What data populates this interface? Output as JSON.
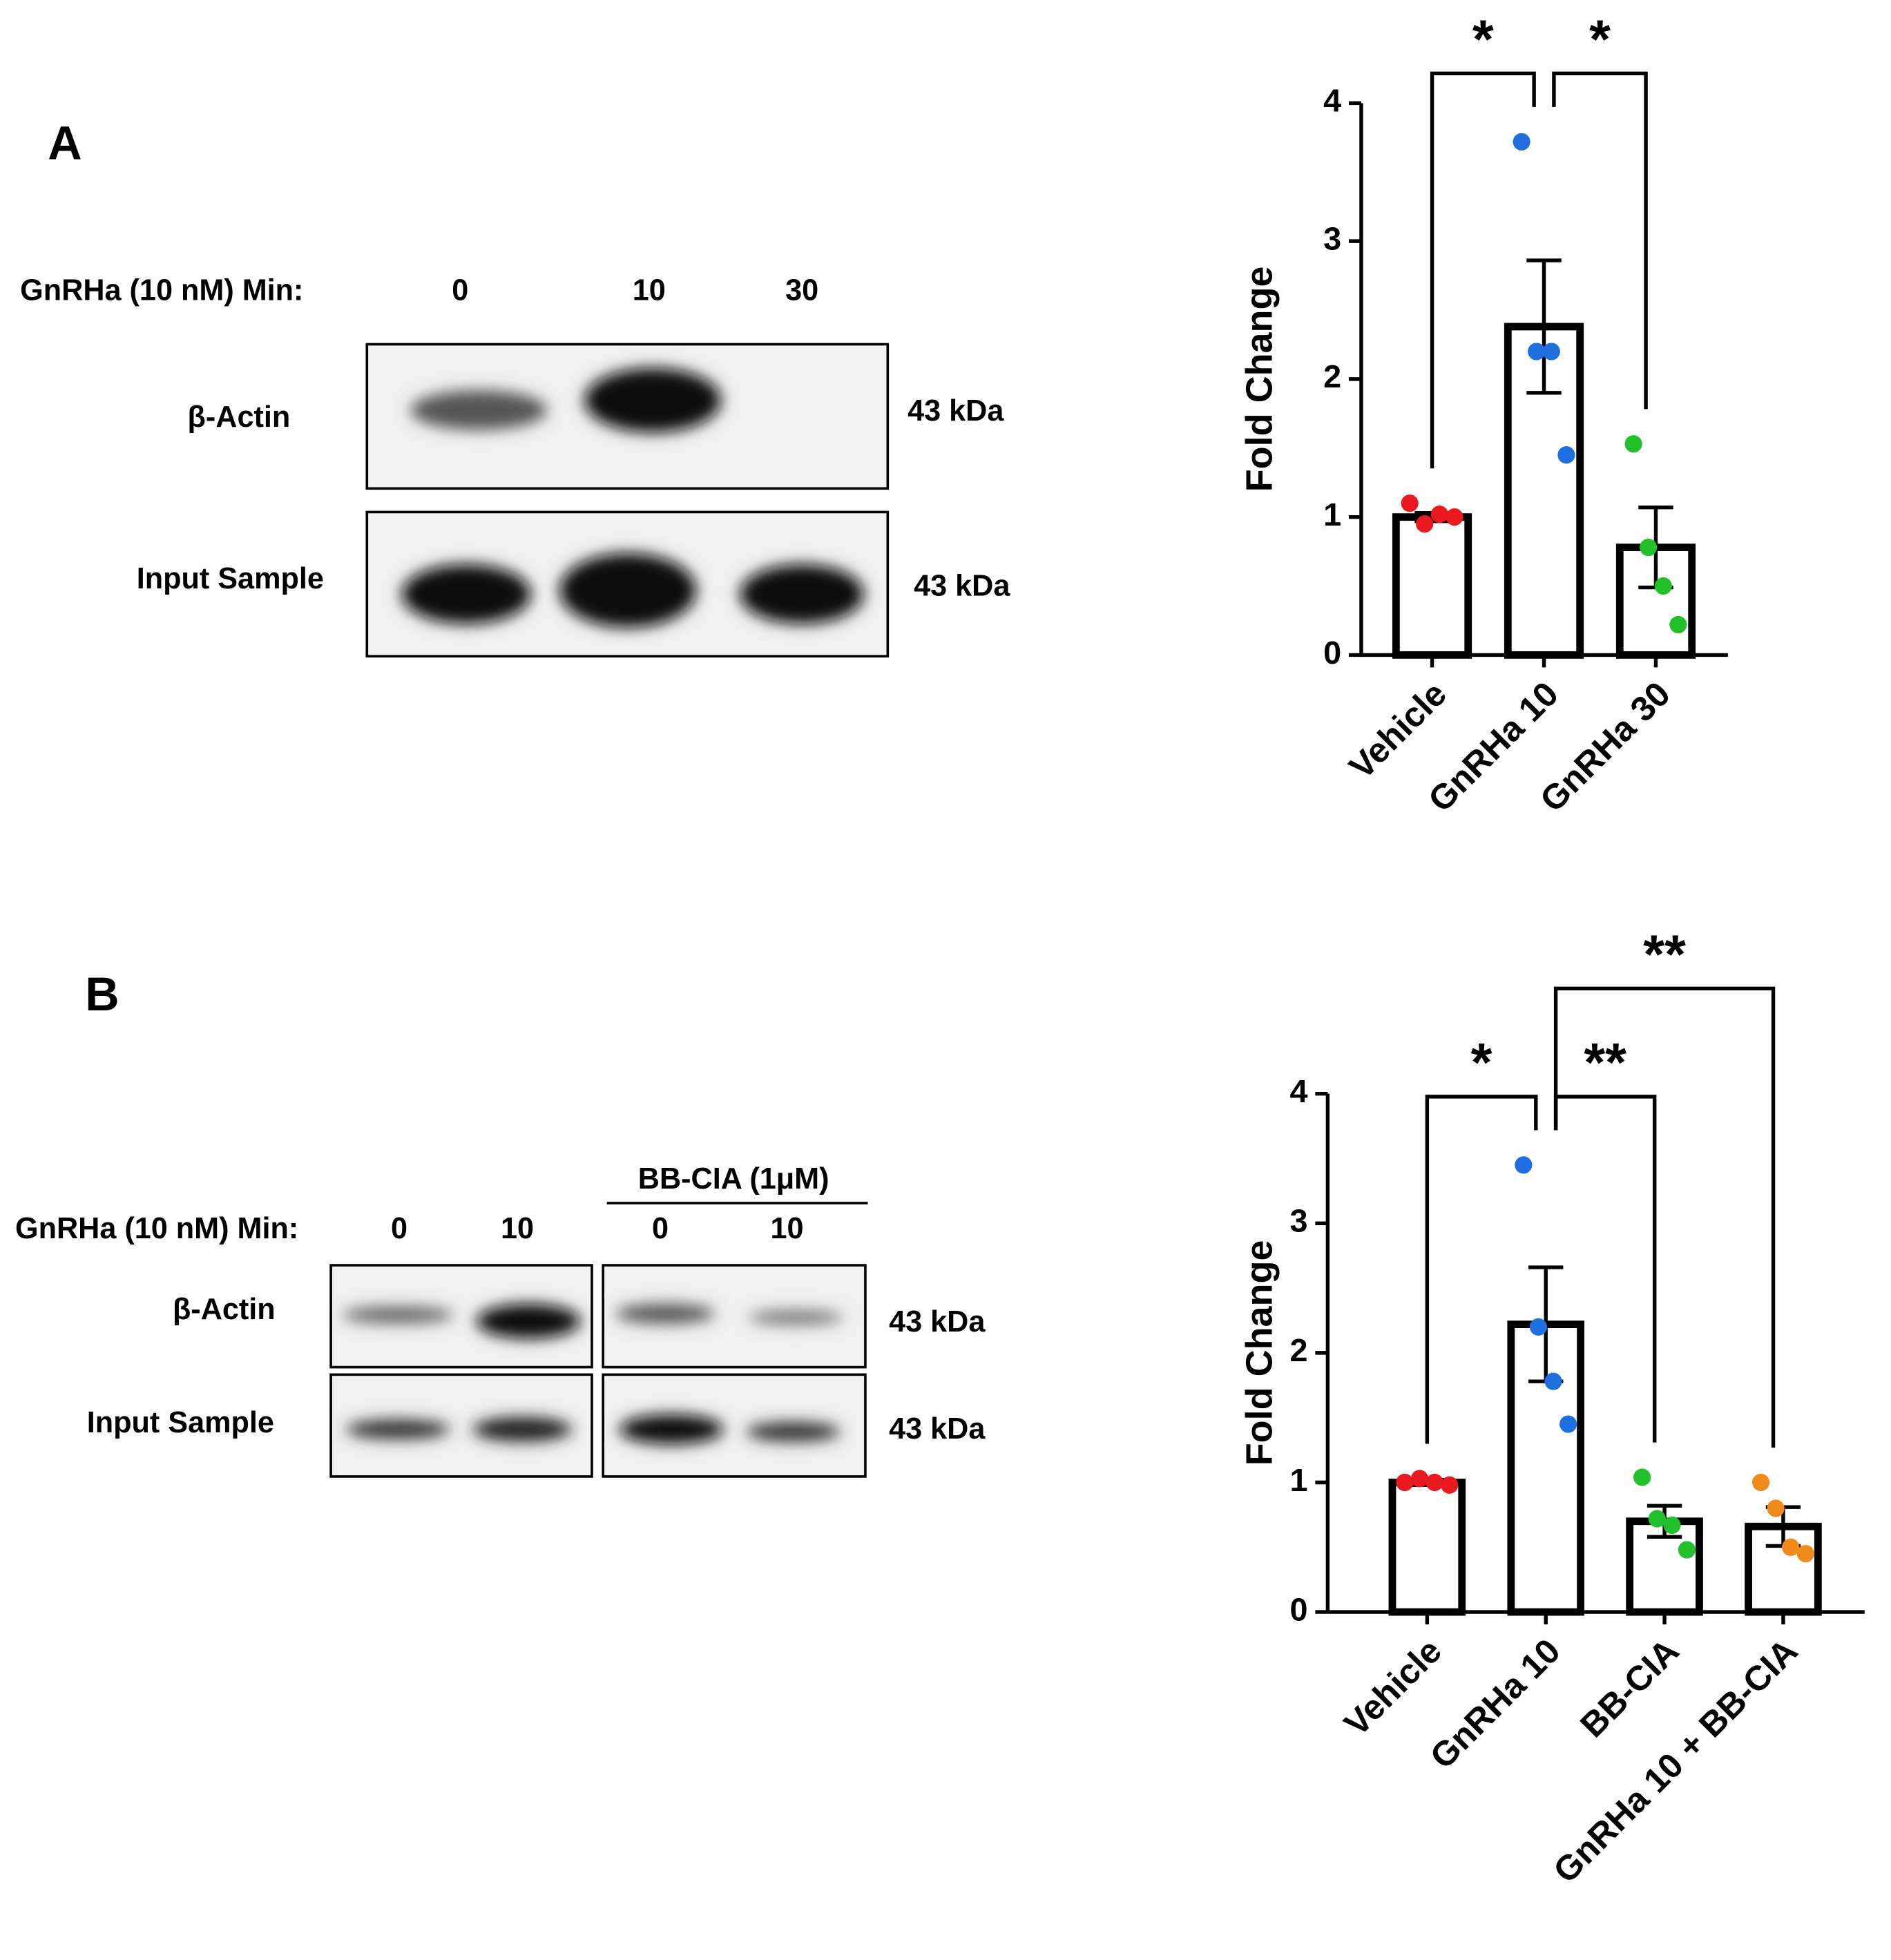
{
  "blots": [
    {
      "panel": "A",
      "treatment_label": "GnRHa (10 nM) Min:",
      "lanes": [
        "0",
        "10",
        "30"
      ],
      "rows": [
        {
          "label": "β-Actin",
          "size": "43 kDa"
        },
        {
          "label": "Input Sample",
          "size": "43 kDa"
        }
      ]
    },
    {
      "panel": "B",
      "inhibitor_label": "BB-CIA (1μM)",
      "treatment_label": "GnRHa (10 nM) Min:",
      "lanes": [
        "0",
        "10",
        "0",
        "10"
      ],
      "rows": [
        {
          "label": "β-Actin",
          "size": "43 kDa"
        },
        {
          "label": "Input Sample",
          "size": "43 kDa"
        }
      ]
    }
  ],
  "chart_data": [
    {
      "type": "bar",
      "ylabel": "Fold Change",
      "categories": [
        "Vehicle",
        "GnRHa 10",
        "GnRHa 30"
      ],
      "values": [
        1.0,
        2.38,
        0.78
      ],
      "errors": [
        0.03,
        0.48,
        0.29
      ],
      "points": [
        [
          1.1,
          0.95,
          1.02,
          1.0
        ],
        [
          3.72,
          2.2,
          2.2,
          1.45
        ],
        [
          1.53,
          0.78,
          0.5,
          0.22
        ]
      ],
      "colors": [
        "#e8191f",
        "#1f6fe0",
        "#22c02a"
      ],
      "ylim": [
        0,
        4
      ],
      "yticks": [
        0,
        1,
        2,
        3,
        4
      ],
      "annotations": [
        {
          "label": "*",
          "between": [
            0,
            1
          ]
        },
        {
          "label": "*",
          "between": [
            1,
            2
          ]
        }
      ]
    },
    {
      "type": "bar",
      "ylabel": "Fold Change",
      "categories": [
        "Vehicle",
        "GnRHa 10",
        "BB-CIA",
        "GnRHa 10 + BB-CIA"
      ],
      "values": [
        1.0,
        2.22,
        0.7,
        0.66
      ],
      "errors": [
        0.02,
        0.44,
        0.12,
        0.15
      ],
      "points": [
        [
          1.0,
          1.03,
          1.0,
          0.98
        ],
        [
          3.45,
          2.2,
          1.78,
          1.45
        ],
        [
          1.04,
          0.72,
          0.67,
          0.48
        ],
        [
          1.0,
          0.8,
          0.5,
          0.45
        ]
      ],
      "colors": [
        "#e8191f",
        "#1f6fe0",
        "#22c02a",
        "#f08a1d"
      ],
      "ylim": [
        0,
        4
      ],
      "yticks": [
        0,
        1,
        2,
        3,
        4
      ],
      "annotations": [
        {
          "label": "*",
          "between": [
            0,
            1
          ]
        },
        {
          "label": "**",
          "between": [
            1,
            2
          ]
        },
        {
          "label": "**",
          "between": [
            1,
            3
          ]
        }
      ]
    }
  ]
}
